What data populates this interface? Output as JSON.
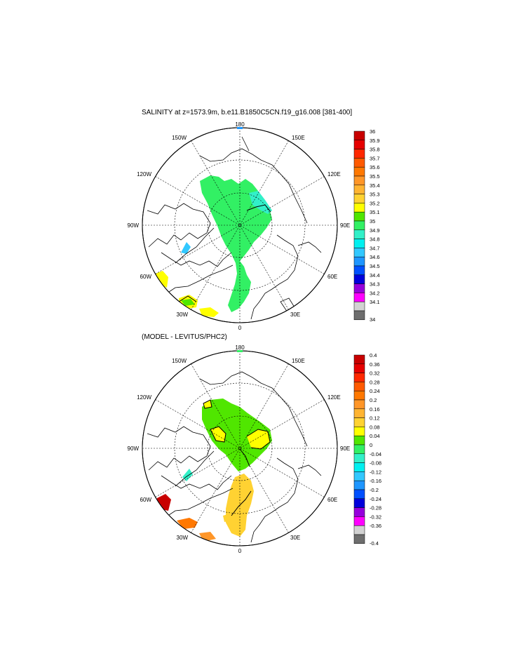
{
  "panels": [
    {
      "title": "SALINITY at z=1573.9m, b.e11.B1850C5CN.f19_g16.008 [381-400]",
      "lon_labels": {
        "top": "180",
        "bottom": "0",
        "left": "90W",
        "right": "90E",
        "upper_left": "150W",
        "upper_left2": "120W",
        "upper_right": "150E",
        "upper_right2": "120E",
        "lower_left": "60W",
        "lower_left2": "30W",
        "lower_right": "60E",
        "lower_right2": "30E"
      },
      "colorbar": {
        "labels": [
          "36",
          "35.9",
          "35.8",
          "35.7",
          "35.6",
          "35.5",
          "35.4",
          "35.3",
          "35.2",
          "35.1",
          "35",
          "34.9",
          "34.8",
          "34.7",
          "34.6",
          "34.5",
          "34.4",
          "34.3",
          "34.2",
          "34.1",
          "34"
        ],
        "colors": [
          "#c80000",
          "#e60000",
          "#ff2800",
          "#ff5a00",
          "#ff7800",
          "#ff9628",
          "#ffb432",
          "#ffd232",
          "#ffff00",
          "#50e600",
          "#32f064",
          "#32f0c8",
          "#00f0f0",
          "#32c8ff",
          "#1e96ff",
          "#0050ff",
          "#0000dc",
          "#9600dc",
          "#ff00ff",
          "#d2d2d2",
          "#6e6e6e"
        ]
      }
    },
    {
      "title": "(MODEL - LEVITUS/PHC2)",
      "lon_labels": {
        "top": "180",
        "bottom": "0",
        "left": "90W",
        "right": "90E",
        "upper_left": "150W",
        "upper_left2": "120W",
        "upper_right": "150E",
        "upper_right2": "120E",
        "lower_left": "60W",
        "lower_left2": "30W",
        "lower_right": "60E",
        "lower_right2": "30E"
      },
      "colorbar": {
        "labels": [
          "0.4",
          "0.36",
          "0.32",
          "0.28",
          "0.24",
          "0.2",
          "0.16",
          "0.12",
          "0.08",
          "0.04",
          "0",
          "-0.04",
          "-0.08",
          "-0.12",
          "-0.16",
          "-0.2",
          "-0.24",
          "-0.28",
          "-0.32",
          "-0.36",
          "-0.4"
        ],
        "colors": [
          "#c80000",
          "#e60000",
          "#ff2800",
          "#ff5a00",
          "#ff7800",
          "#ff9628",
          "#ffb432",
          "#ffd232",
          "#ffff00",
          "#50e600",
          "#32f064",
          "#32f0c8",
          "#00f0f0",
          "#32c8ff",
          "#1e96ff",
          "#0050ff",
          "#0000dc",
          "#9600dc",
          "#ff00ff",
          "#d2d2d2",
          "#6e6e6e"
        ]
      }
    }
  ]
}
